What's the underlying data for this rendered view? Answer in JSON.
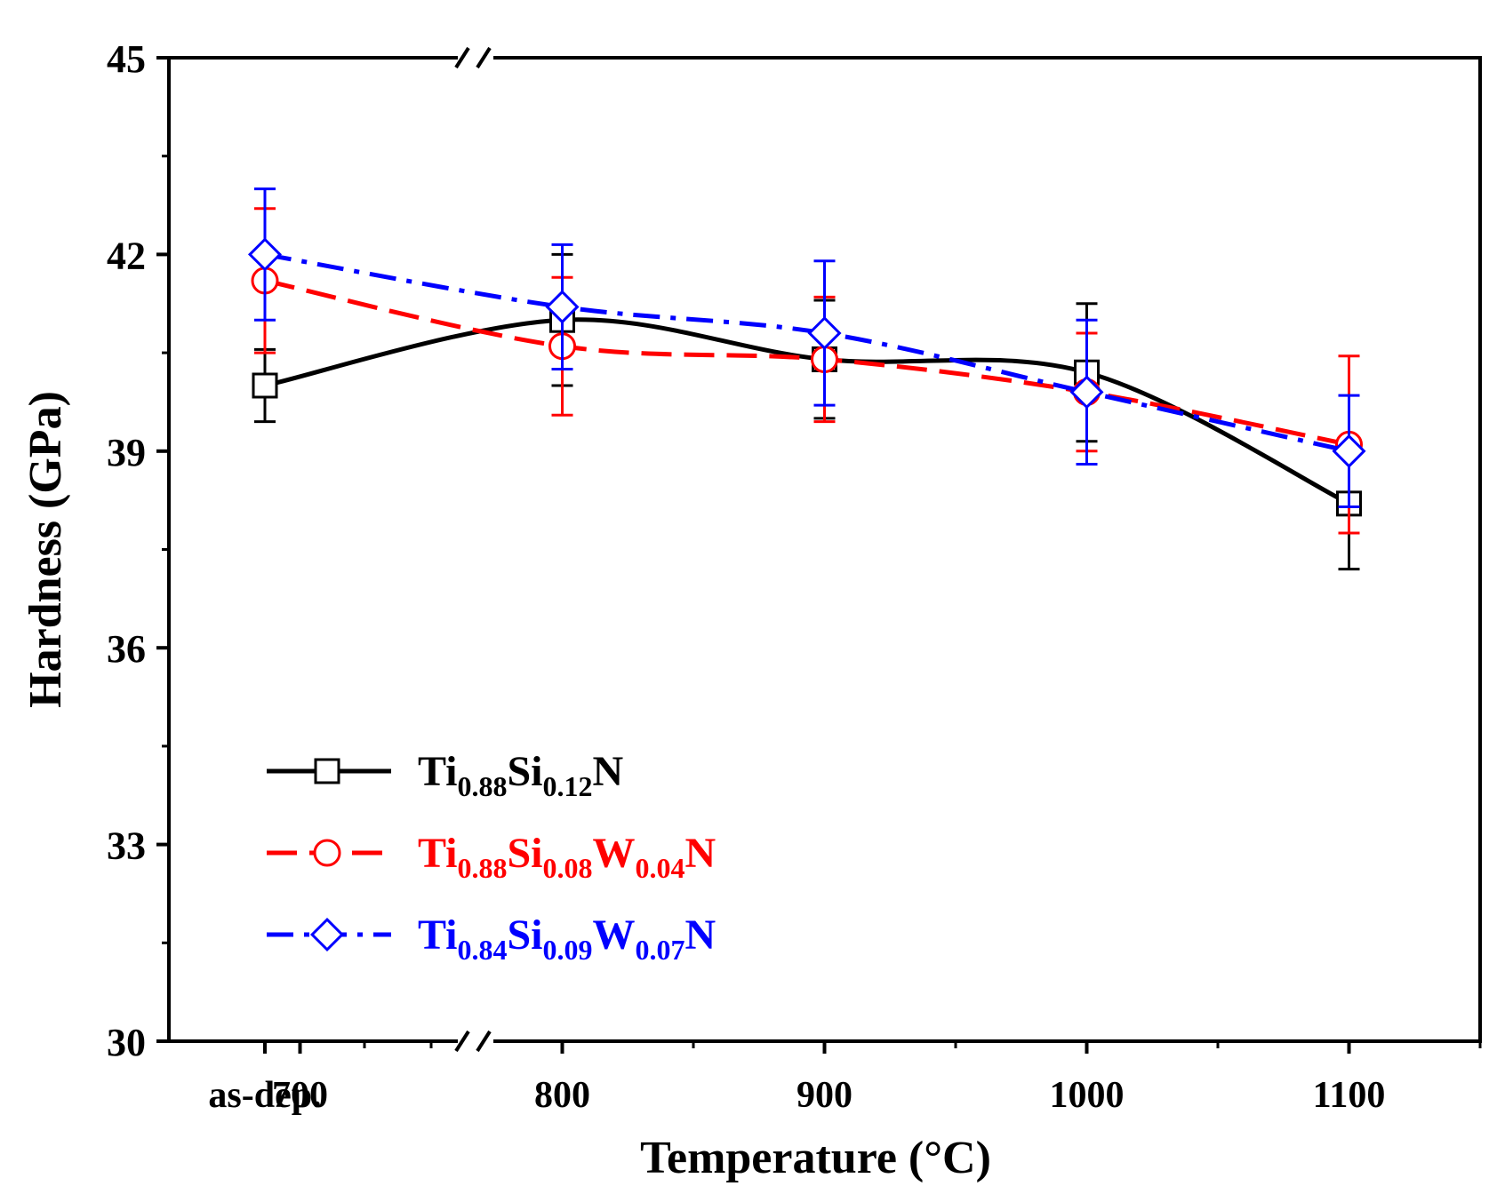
{
  "chart_data": {
    "type": "line",
    "xlabel": "Temperature (°C)",
    "ylabel": "Hardness (GPa)",
    "ylim": [
      30,
      45
    ],
    "yticks": [
      30,
      33,
      36,
      39,
      42,
      45
    ],
    "xlim": [
      650,
      1150
    ],
    "xticks": [
      {
        "label": "as-dep.",
        "value": "as-dep."
      },
      {
        "label": "700",
        "value": 700
      },
      {
        "label": "800",
        "value": 800
      },
      {
        "label": "900",
        "value": 900
      },
      {
        "label": "1000",
        "value": 1000
      },
      {
        "label": "1100",
        "value": 1100
      }
    ],
    "axis_break": "between as-dep. and 700",
    "legend_position": "lower-left",
    "series": [
      {
        "name": "Ti0.88Si0.12N",
        "legend": [
          {
            "t": "Ti"
          },
          {
            "t": "0.88",
            "sub": true
          },
          {
            "t": "Si"
          },
          {
            "t": "0.12",
            "sub": true
          },
          {
            "t": "N"
          }
        ],
        "color": "#000000",
        "marker": "square",
        "line_style": "solid",
        "x": [
          "as-dep.",
          800,
          900,
          1000,
          1100
        ],
        "values": [
          40.0,
          41.0,
          40.4,
          40.2,
          38.2
        ],
        "errors": [
          0.55,
          1.0,
          0.9,
          1.05,
          1.0
        ]
      },
      {
        "name": "Ti0.88Si0.08W0.04N",
        "legend": [
          {
            "t": "Ti"
          },
          {
            "t": "0.88",
            "sub": true
          },
          {
            "t": "Si"
          },
          {
            "t": "0.08",
            "sub": true
          },
          {
            "t": "W"
          },
          {
            "t": "0.04",
            "sub": true
          },
          {
            "t": "N"
          }
        ],
        "color": "#ff0000",
        "marker": "circle",
        "line_style": "dash",
        "x": [
          "as-dep.",
          800,
          900,
          1000,
          1100
        ],
        "values": [
          41.6,
          40.6,
          40.4,
          39.9,
          39.1
        ],
        "errors": [
          1.1,
          1.05,
          0.95,
          0.9,
          1.35
        ]
      },
      {
        "name": "Ti0.84Si0.09W0.07N",
        "legend": [
          {
            "t": "Ti"
          },
          {
            "t": "0.84",
            "sub": true
          },
          {
            "t": "Si"
          },
          {
            "t": "0.09",
            "sub": true
          },
          {
            "t": "W"
          },
          {
            "t": "0.07",
            "sub": true
          },
          {
            "t": "N"
          }
        ],
        "color": "#0000ff",
        "marker": "diamond",
        "line_style": "dash-dot",
        "x": [
          "as-dep.",
          800,
          900,
          1000,
          1100
        ],
        "values": [
          42.0,
          41.2,
          40.8,
          39.9,
          39.0
        ],
        "errors": [
          1.0,
          0.95,
          1.1,
          1.1,
          0.85
        ]
      }
    ]
  }
}
